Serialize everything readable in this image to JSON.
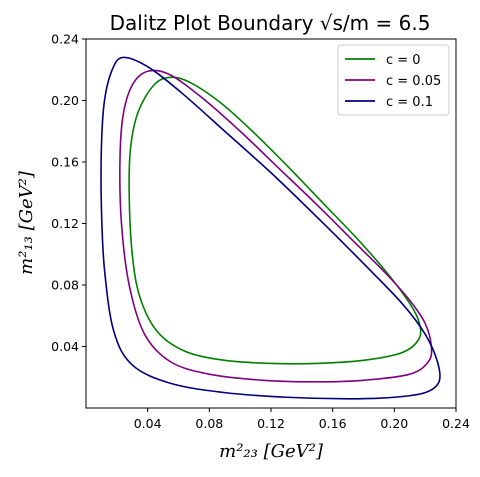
{
  "chart_data": {
    "type": "line",
    "title": "Dalitz Plot Boundary √s/m = 6.5",
    "xlabel": "m²₂₃ [GeV²]",
    "ylabel": "m²₁₃ [GeV²]",
    "xlim": [
      0.0,
      0.24
    ],
    "ylim": [
      0.0,
      0.24
    ],
    "xticks": [
      "0.04",
      "0.08",
      "0.12",
      "0.16",
      "0.20",
      "0.24"
    ],
    "yticks": [
      "0.04",
      "0.08",
      "0.12",
      "0.16",
      "0.20",
      "0.24"
    ],
    "grid": false,
    "legend_position": "top-right",
    "series": [
      {
        "name": "c = 0",
        "color": "#008000",
        "x": [
          0.054,
          0.067,
          0.088,
          0.11,
          0.132,
          0.154,
          0.176,
          0.196,
          0.21,
          0.216,
          0.216,
          0.205,
          0.18,
          0.15,
          0.12,
          0.09,
          0.064,
          0.046,
          0.035,
          0.03,
          0.028,
          0.029,
          0.034,
          0.044,
          0.054
        ],
        "y": [
          0.215,
          0.212,
          0.198,
          0.178,
          0.156,
          0.133,
          0.11,
          0.087,
          0.068,
          0.056,
          0.045,
          0.036,
          0.031,
          0.029,
          0.029,
          0.031,
          0.037,
          0.05,
          0.072,
          0.1,
          0.14,
          0.17,
          0.193,
          0.21,
          0.215
        ]
      },
      {
        "name": "c = 0.05",
        "color": "#800080",
        "x": [
          0.04,
          0.054,
          0.075,
          0.1,
          0.125,
          0.15,
          0.175,
          0.195,
          0.21,
          0.22,
          0.224,
          0.222,
          0.21,
          0.18,
          0.15,
          0.115,
          0.08,
          0.055,
          0.038,
          0.028,
          0.023,
          0.022,
          0.024,
          0.03,
          0.04
        ],
        "y": [
          0.219,
          0.217,
          0.202,
          0.18,
          0.156,
          0.132,
          0.107,
          0.087,
          0.07,
          0.055,
          0.04,
          0.03,
          0.022,
          0.018,
          0.017,
          0.018,
          0.022,
          0.03,
          0.048,
          0.08,
          0.12,
          0.16,
          0.19,
          0.21,
          0.219
        ]
      },
      {
        "name": "c = 0.1",
        "color": "#000080",
        "x": [
          0.024,
          0.04,
          0.062,
          0.09,
          0.12,
          0.15,
          0.18,
          0.205,
          0.22,
          0.228,
          0.229,
          0.22,
          0.2,
          0.17,
          0.13,
          0.09,
          0.055,
          0.03,
          0.018,
          0.012,
          0.01,
          0.01,
          0.012,
          0.017,
          0.024
        ],
        "y": [
          0.228,
          0.222,
          0.205,
          0.18,
          0.153,
          0.124,
          0.094,
          0.068,
          0.048,
          0.03,
          0.017,
          0.01,
          0.007,
          0.006,
          0.007,
          0.01,
          0.016,
          0.028,
          0.05,
          0.09,
          0.13,
          0.17,
          0.2,
          0.22,
          0.228
        ]
      }
    ]
  }
}
